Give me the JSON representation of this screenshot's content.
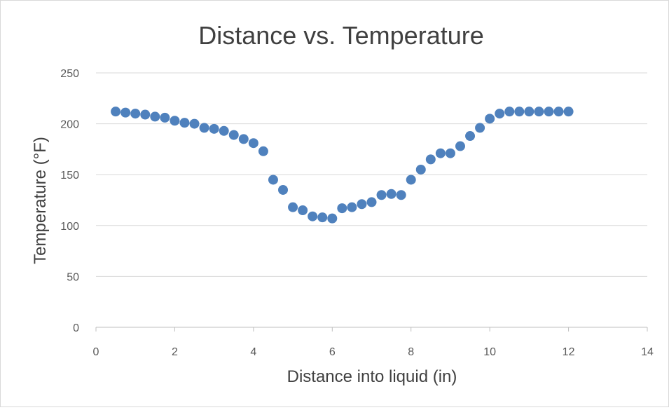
{
  "chart_data": {
    "type": "scatter",
    "title": "Distance vs. Temperature",
    "xlabel": "Distance into liquid (in)",
    "ylabel": "Temperature (°F)",
    "xlim": [
      0,
      14
    ],
    "ylim": [
      0,
      250
    ],
    "xticks": [
      0,
      2,
      4,
      6,
      8,
      10,
      12,
      14
    ],
    "yticks": [
      0,
      50,
      100,
      150,
      200,
      250
    ],
    "grid": "horizontal",
    "legend": "none",
    "marker_color": "#4f81bd",
    "series": [
      {
        "x": [
          0.5,
          0.75,
          1.0,
          1.25,
          1.5,
          1.75,
          2.0,
          2.25,
          2.5,
          2.75,
          3.0,
          3.25,
          3.5,
          3.75,
          4.0,
          4.25,
          4.5,
          4.75,
          5.0,
          5.25,
          5.5,
          5.75,
          6.0,
          6.25,
          6.5,
          6.75,
          7.0,
          7.25,
          7.5,
          7.75,
          8.0,
          8.25,
          8.5,
          8.75,
          9.0,
          9.25,
          9.5,
          9.75,
          10.0,
          10.25,
          10.5,
          10.75,
          11.0,
          11.25,
          11.5,
          11.75,
          12.0
        ],
        "y": [
          212,
          211,
          210,
          209,
          207,
          206,
          203,
          201,
          200,
          196,
          195,
          193,
          189,
          185,
          181,
          173,
          145,
          135,
          118,
          115,
          109,
          108,
          107,
          117,
          118,
          121,
          123,
          130,
          131,
          130,
          145,
          155,
          165,
          171,
          171,
          178,
          188,
          196,
          205,
          210,
          212,
          212,
          212,
          212,
          212,
          212,
          212
        ]
      }
    ]
  }
}
